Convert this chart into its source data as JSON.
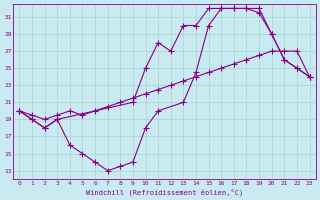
{
  "xlabel": "Windchill (Refroidissement éolien,°C)",
  "background_color": "#c8eaf0",
  "grid_color": "#b0d8d8",
  "line_color": "#880088",
  "x_ticks": [
    0,
    1,
    2,
    3,
    4,
    5,
    6,
    7,
    8,
    9,
    10,
    11,
    12,
    13,
    14,
    15,
    16,
    17,
    18,
    19,
    20,
    21,
    22,
    23
  ],
  "y_ticks": [
    13,
    15,
    17,
    19,
    21,
    23,
    25,
    27,
    29,
    31
  ],
  "ylim": [
    12,
    32.5
  ],
  "xlim": [
    -0.5,
    23.5
  ],
  "line1_x": [
    0,
    1,
    2,
    3,
    4,
    5,
    6,
    7,
    8,
    9,
    10,
    11,
    13,
    14,
    15,
    16,
    17,
    18,
    19,
    20,
    21,
    22,
    23
  ],
  "line1_y": [
    20,
    19,
    18,
    19,
    16,
    15,
    14,
    13,
    13.5,
    14,
    18,
    20,
    21,
    24.5,
    30,
    32,
    32,
    32,
    31.5,
    29,
    26,
    25,
    24
  ],
  "line2_x": [
    0,
    1,
    2,
    3,
    4,
    5,
    6,
    7,
    8,
    9,
    10,
    11,
    12,
    13,
    14,
    15,
    16,
    17,
    18,
    19,
    20,
    21,
    22,
    23
  ],
  "line2_y": [
    20,
    19.5,
    19,
    19.5,
    20,
    19.5,
    20,
    20.5,
    21,
    21.5,
    22,
    22.5,
    23,
    23.5,
    24,
    24.5,
    25,
    25.5,
    26,
    26.5,
    27,
    27,
    27,
    24
  ],
  "line3_x": [
    0,
    1,
    2,
    3,
    9,
    10,
    11,
    12,
    13,
    14,
    15,
    16,
    17,
    18,
    19,
    20,
    21,
    22,
    23
  ],
  "line3_y": [
    20,
    19,
    18,
    19,
    21,
    25,
    28,
    27,
    30,
    30,
    32,
    32,
    32,
    32,
    32,
    29,
    26,
    25,
    24
  ]
}
